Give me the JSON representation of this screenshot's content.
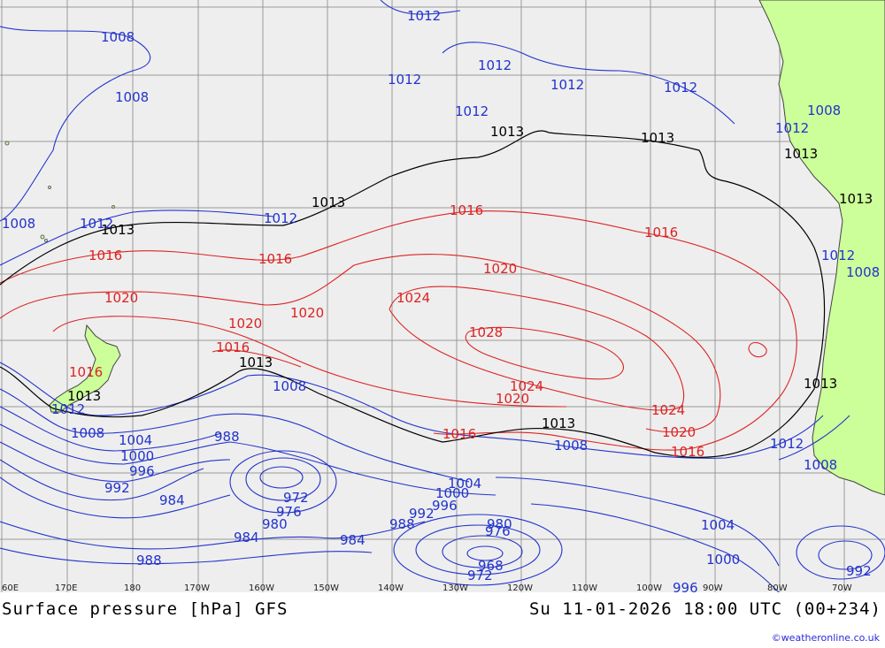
{
  "map": {
    "colors": {
      "ocean": "#eeeeee",
      "land": "#ccff99",
      "grid": "#999999",
      "low_isobar": "#2233cc",
      "high_isobar": "#dd2222",
      "mean_isobar": "#000000"
    },
    "longitude_ticks": [
      "60E",
      "170E",
      "180",
      "170W",
      "160W",
      "150W",
      "140W",
      "130W",
      "120W",
      "110W",
      "100W",
      "90W",
      "80W",
      "70W"
    ],
    "isobar_labels": {
      "blue": [
        "1012",
        "1008",
        "1008",
        "1012",
        "1012",
        "1012",
        "1012",
        "1012",
        "1008",
        "1012",
        "1008",
        "1012",
        "1012",
        "1012",
        "1008",
        "1008",
        "1012",
        "1008",
        "1004",
        "1000",
        "996",
        "992",
        "988",
        "984",
        "976",
        "980",
        "972",
        "984",
        "984",
        "988",
        "992",
        "996",
        "1000",
        "1004",
        "1008",
        "980",
        "976",
        "968",
        "972",
        "1004",
        "1000",
        "988",
        "992",
        "996",
        "1012",
        "1008"
      ],
      "red": [
        "1016",
        "1016",
        "1016",
        "1016",
        "1020",
        "1020",
        "1020",
        "1020",
        "1024",
        "1028",
        "1016",
        "1016",
        "1024",
        "1020",
        "1024",
        "1020",
        "1016",
        "1016"
      ],
      "black": [
        "1013",
        "1013",
        "1013",
        "1013",
        "1013",
        "1013",
        "1013",
        "1013",
        "1013"
      ]
    }
  },
  "footer": {
    "title": "Surface pressure [hPa] GFS",
    "valid_time": "Su 11-01-2026 18:00 UTC (00+234)",
    "credit": "©weatheronline.co.uk"
  }
}
